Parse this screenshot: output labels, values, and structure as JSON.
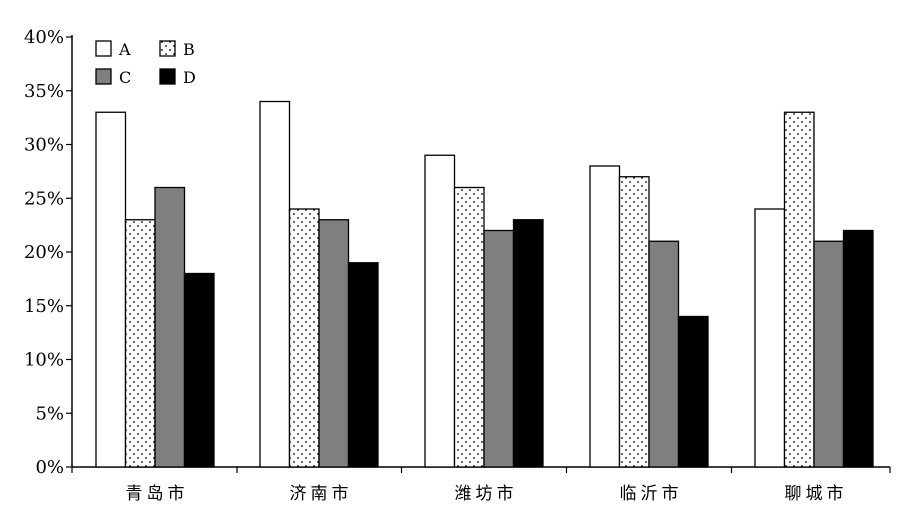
{
  "chart_data": {
    "type": "bar",
    "categories": [
      "青岛市",
      "济南市",
      "潍坊市",
      "临沂市",
      "聊城市"
    ],
    "series": [
      {
        "name": "A",
        "values": [
          33,
          34,
          29,
          28,
          24
        ],
        "fill": "#ffffff",
        "pattern": "none"
      },
      {
        "name": "B",
        "values": [
          23,
          24,
          26,
          27,
          33
        ],
        "fill": "#ffffff",
        "pattern": "dots"
      },
      {
        "name": "C",
        "values": [
          26,
          23,
          22,
          21,
          21
        ],
        "fill": "#7f7f7f",
        "pattern": "none"
      },
      {
        "name": "D",
        "values": [
          18,
          19,
          23,
          14,
          22
        ],
        "fill": "#000000",
        "pattern": "none"
      }
    ],
    "ylim": [
      0,
      40
    ],
    "y_ticks": [
      "0%",
      "5%",
      "10%",
      "15%",
      "20%",
      "25%",
      "30%",
      "35%",
      "40%"
    ],
    "y_tick_values": [
      0,
      5,
      10,
      15,
      20,
      25,
      30,
      35,
      40
    ],
    "grid": false,
    "legend_placement": "top-left",
    "legend_layout": "2 columns x 2 rows",
    "title": "",
    "xlabel": "",
    "ylabel": ""
  }
}
